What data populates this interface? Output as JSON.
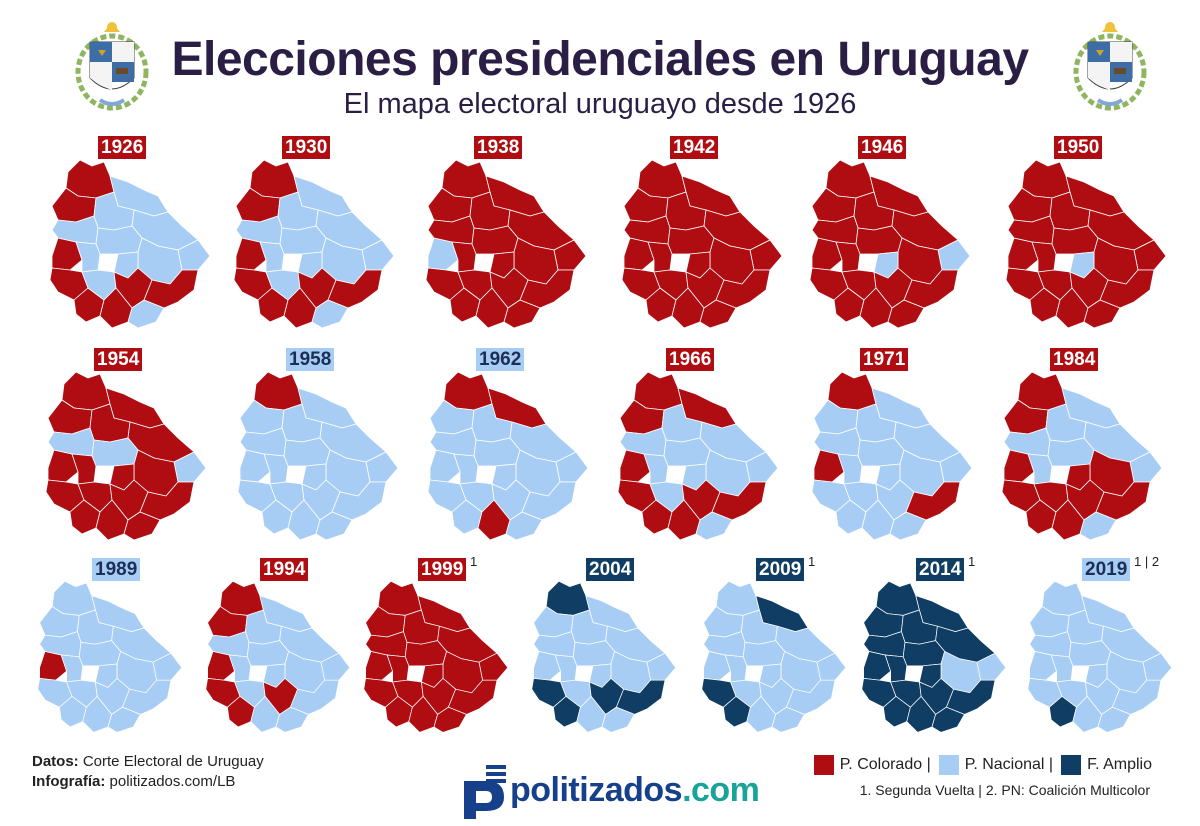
{
  "header": {
    "title": "Elecciones presidenciales en Uruguay",
    "subtitle": "El mapa electoral uruguayo desde 1926"
  },
  "colors": {
    "colorado": "#b00d12",
    "nacional": "#a8cdf5",
    "frente_amplio": "#0f3d63",
    "border": "#ffffff"
  },
  "maps": [
    {
      "year": "1926",
      "winner": "pc",
      "note": "",
      "departments": [
        "pc",
        "pn",
        "pc",
        "pn",
        "pn",
        "pn",
        "pc",
        "pn",
        "pn",
        "pn",
        "pn",
        "pn",
        "pc",
        "pn",
        "pc",
        "pc",
        "pc",
        "pc",
        "pn"
      ]
    },
    {
      "year": "1930",
      "winner": "pc",
      "note": "",
      "departments": [
        "pc",
        "pn",
        "pc",
        "pn",
        "pn",
        "pn",
        "pc",
        "pn",
        "pn",
        "pn",
        "pn",
        "pn",
        "pc",
        "pn",
        "pc",
        "pc",
        "pc",
        "pc",
        "pn"
      ]
    },
    {
      "year": "1938",
      "winner": "pc",
      "note": "",
      "departments": [
        "pc",
        "pc",
        "pc",
        "pc",
        "pc",
        "pc",
        "pn",
        "pc",
        "pc",
        "pc",
        "pc",
        "pc",
        "pc",
        "pc",
        "pc",
        "pc",
        "pc",
        "pc",
        "pc"
      ]
    },
    {
      "year": "1942",
      "winner": "pc",
      "note": "",
      "departments": [
        "pc",
        "pc",
        "pc",
        "pc",
        "pc",
        "pc",
        "pc",
        "pc",
        "pc",
        "pc",
        "pc",
        "pc",
        "pc",
        "pc",
        "pc",
        "pc",
        "pc",
        "pc",
        "pc"
      ]
    },
    {
      "year": "1946",
      "winner": "pc",
      "note": "",
      "departments": [
        "pc",
        "pc",
        "pc",
        "pc",
        "pc",
        "pn",
        "pc",
        "pc",
        "pc",
        "pc",
        "pn",
        "pc",
        "pc",
        "pc",
        "pc",
        "pc",
        "pc",
        "pc",
        "pc"
      ]
    },
    {
      "year": "1950",
      "winner": "pc",
      "note": "",
      "departments": [
        "pc",
        "pc",
        "pc",
        "pc",
        "pc",
        "pc",
        "pc",
        "pc",
        "pc",
        "pc",
        "pn",
        "pc",
        "pc",
        "pc",
        "pc",
        "pc",
        "pc",
        "pc",
        "pc"
      ]
    },
    {
      "year": "1954",
      "winner": "pc",
      "note": "",
      "departments": [
        "pc",
        "pc",
        "pc",
        "pc",
        "pc",
        "pn",
        "pc",
        "pn",
        "pn",
        "pc",
        "pc",
        "pc",
        "pc",
        "pc",
        "pc",
        "pc",
        "pc",
        "pc",
        "pc"
      ]
    },
    {
      "year": "1958",
      "winner": "pn",
      "note": "",
      "departments": [
        "pc",
        "pn",
        "pn",
        "pn",
        "pn",
        "pn",
        "pn",
        "pn",
        "pn",
        "pn",
        "pn",
        "pn",
        "pn",
        "pn",
        "pn",
        "pn",
        "pn",
        "pn",
        "pn"
      ]
    },
    {
      "year": "1962",
      "winner": "pn",
      "note": "",
      "departments": [
        "pc",
        "pc",
        "pn",
        "pn",
        "pn",
        "pn",
        "pn",
        "pn",
        "pn",
        "pn",
        "pn",
        "pn",
        "pn",
        "pn",
        "pn",
        "pn",
        "pn",
        "pc",
        "pn"
      ]
    },
    {
      "year": "1966",
      "winner": "pc",
      "note": "",
      "departments": [
        "pc",
        "pc",
        "pc",
        "pn",
        "pn",
        "pn",
        "pc",
        "pn",
        "pn",
        "pn",
        "pn",
        "pn",
        "pc",
        "pn",
        "pc",
        "pc",
        "pc",
        "pc",
        "pn"
      ]
    },
    {
      "year": "1971",
      "winner": "pc",
      "note": "",
      "departments": [
        "pc",
        "pn",
        "pn",
        "pn",
        "pn",
        "pn",
        "pc",
        "pn",
        "pn",
        "pn",
        "pn",
        "pn",
        "pn",
        "pn",
        "pn",
        "pc",
        "pn",
        "pn",
        "pn"
      ]
    },
    {
      "year": "1984",
      "winner": "pc",
      "note": "",
      "departments": [
        "pc",
        "pn",
        "pc",
        "pn",
        "pn",
        "pn",
        "pc",
        "pn",
        "pn",
        "pc",
        "pc",
        "pn",
        "pc",
        "pc",
        "pc",
        "pc",
        "pc",
        "pc",
        "pn"
      ]
    },
    {
      "year": "1989",
      "winner": "pn",
      "note": "",
      "departments": [
        "pn",
        "pn",
        "pn",
        "pn",
        "pn",
        "pn",
        "pc",
        "pn",
        "pn",
        "pn",
        "pn",
        "pn",
        "pn",
        "pn",
        "pn",
        "pn",
        "pn",
        "pn",
        "pn"
      ]
    },
    {
      "year": "1994",
      "winner": "pc",
      "note": "",
      "departments": [
        "pc",
        "pn",
        "pc",
        "pn",
        "pn",
        "pn",
        "pc",
        "pn",
        "pn",
        "pn",
        "pn",
        "pn",
        "pc",
        "pn",
        "pc",
        "pn",
        "pc",
        "pn",
        "pn"
      ]
    },
    {
      "year": "1999",
      "winner": "pc",
      "note": "1",
      "departments": [
        "pc",
        "pc",
        "pc",
        "pc",
        "pc",
        "pc",
        "pc",
        "pc",
        "pc",
        "pc",
        "pc",
        "pc",
        "pc",
        "pc",
        "pc",
        "pc",
        "pc",
        "pc",
        "pc"
      ]
    },
    {
      "year": "2004",
      "winner": "fa",
      "note": "",
      "departments": [
        "fa",
        "pn",
        "pn",
        "pn",
        "pn",
        "pn",
        "pn",
        "pn",
        "pn",
        "pn",
        "pn",
        "pn",
        "fa",
        "pn",
        "fa",
        "fa",
        "fa",
        "pn",
        "pn"
      ]
    },
    {
      "year": "2009",
      "winner": "fa",
      "note": "1",
      "departments": [
        "pn",
        "fa",
        "pn",
        "pn",
        "pn",
        "pn",
        "pn",
        "pn",
        "pn",
        "pn",
        "pn",
        "pn",
        "fa",
        "pn",
        "pn",
        "pn",
        "fa",
        "pn",
        "pn"
      ]
    },
    {
      "year": "2014",
      "winner": "fa",
      "note": "1",
      "departments": [
        "fa",
        "fa",
        "fa",
        "fa",
        "fa",
        "pn",
        "fa",
        "fa",
        "fa",
        "pn",
        "fa",
        "fa",
        "fa",
        "fa",
        "fa",
        "fa",
        "fa",
        "fa",
        "fa"
      ]
    },
    {
      "year": "2019",
      "winner": "pn",
      "note": "1 | 2",
      "departments": [
        "pn",
        "pn",
        "pn",
        "pn",
        "pn",
        "pn",
        "pn",
        "pn",
        "pn",
        "pn",
        "pn",
        "pn",
        "pn",
        "pn",
        "pn",
        "pn",
        "fa",
        "pn",
        "pn"
      ]
    }
  ],
  "credits": {
    "data_label": "Datos:",
    "data_value": "Corte Electoral de Uruguay",
    "info_label": "Infografía:",
    "info_value": "politizados.com/LB"
  },
  "legend": {
    "colorado": "P. Colorado |",
    "nacional": "P. Nacional |",
    "frente_amplio": "F. Amplio",
    "notes": "1. Segunda Vuelta | 2. PN: Coalición Multicolor"
  },
  "brand": {
    "prefix": "politizados",
    "suffix": ".com"
  }
}
